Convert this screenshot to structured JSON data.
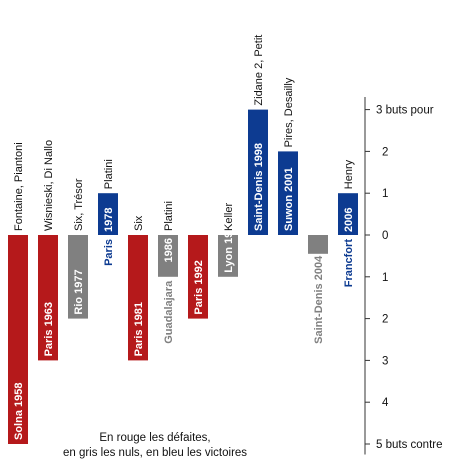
{
  "chart_data": {
    "type": "bar",
    "colors": {
      "defeat": "#b5191b",
      "draw": "#808080",
      "win": "#0d3b91"
    },
    "series": [
      {
        "label": "Solna 1958",
        "value": -5,
        "result": "defeat",
        "scorers": "Fontaine, Piantoni"
      },
      {
        "label": "Paris 1963",
        "value": -3,
        "result": "defeat",
        "scorers": "Wisnieski, Di Nallo"
      },
      {
        "label": "Rio 1977",
        "value": -2,
        "result": "draw",
        "scorers": "Six, Trésor"
      },
      {
        "label": "1978",
        "label_prefix": "Paris",
        "value": 1,
        "result": "win",
        "scorers": "Platini"
      },
      {
        "label": "Paris 1981",
        "value": -3,
        "result": "defeat",
        "scorers": "Six"
      },
      {
        "label": "1986",
        "label_prefix": "Guadalajara",
        "value": -1,
        "result": "draw",
        "scorers": "Platini"
      },
      {
        "label": "Paris 1992",
        "value": -2,
        "result": "defeat",
        "scorers": ""
      },
      {
        "label": "Lyon 1997",
        "value": -1,
        "result": "draw",
        "scorers": "Keller"
      },
      {
        "label": "Saint-Denis 1998",
        "value": 3,
        "result": "win",
        "scorers": "Zidane 2, Petit"
      },
      {
        "label": "Suwon 2001",
        "value": 2,
        "result": "win",
        "scorers": "Pires, Desailly"
      },
      {
        "label": "2004",
        "label_prefix": "Saint-Denis",
        "value": 0,
        "result": "draw",
        "scorers": ""
      },
      {
        "label": "2006",
        "label_prefix": "Francfort",
        "value": 1,
        "result": "win",
        "scorers": "Henry"
      }
    ],
    "axis": {
      "ticks": [
        {
          "value": 3,
          "label": "3 buts pour"
        },
        {
          "value": 2,
          "label": "2"
        },
        {
          "value": 1,
          "label": "1"
        },
        {
          "value": 0,
          "label": "0"
        },
        {
          "value": -1,
          "label": "1"
        },
        {
          "value": -2,
          "label": "2"
        },
        {
          "value": -3,
          "label": "3"
        },
        {
          "value": -4,
          "label": "4"
        },
        {
          "value": -5,
          "label": "5 buts contre"
        }
      ]
    },
    "legend": {
      "line1": "En rouge les défaites,",
      "line2": "en gris les nuls, en bleu les victoires"
    }
  }
}
